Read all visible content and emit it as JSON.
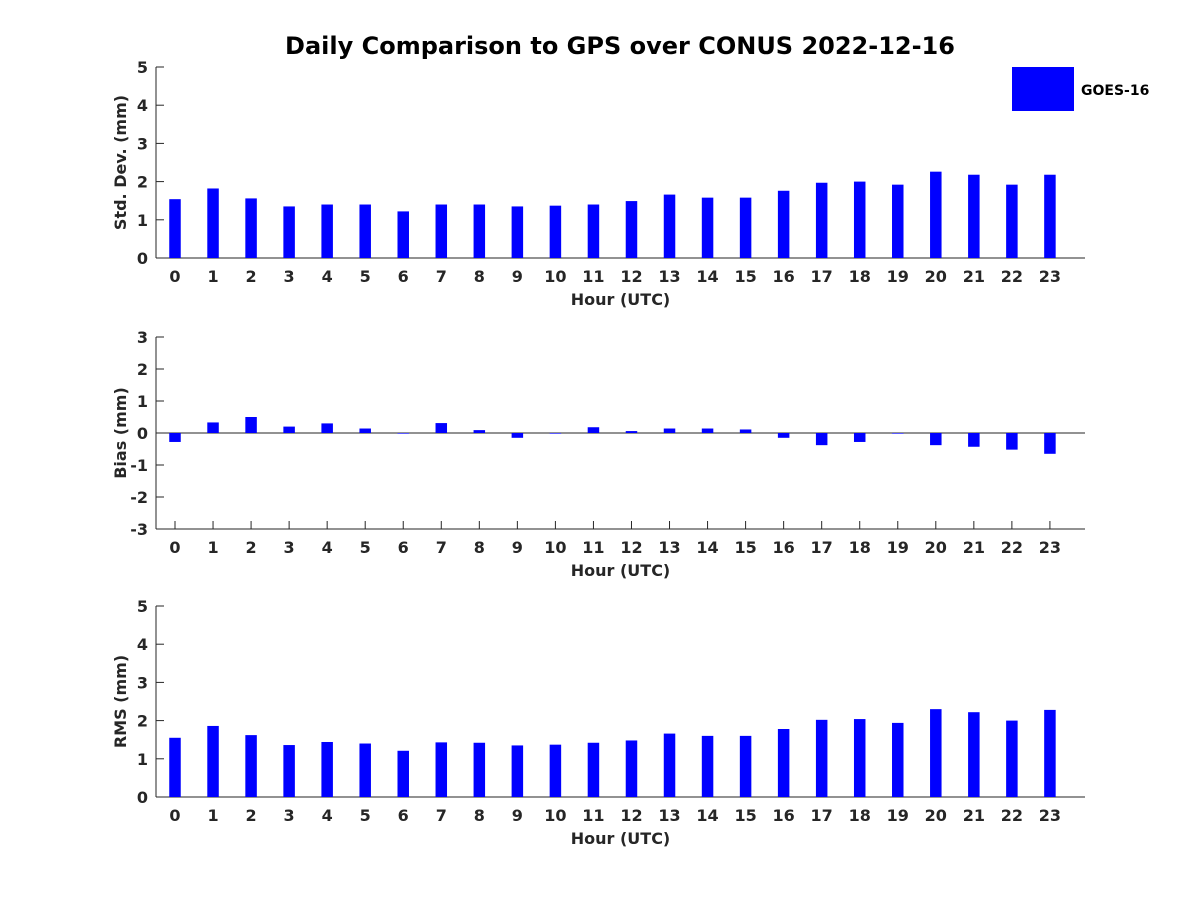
{
  "title": "Daily Comparison to GPS over CONUS 2022-12-16",
  "legend": {
    "label": "GOES-16",
    "color": "#0000ff"
  },
  "chart_data": [
    {
      "type": "bar",
      "xlabel": "Hour (UTC)",
      "ylabel": "Std. Dev. (mm)",
      "categories": [
        "0",
        "1",
        "2",
        "3",
        "4",
        "5",
        "6",
        "7",
        "8",
        "9",
        "10",
        "11",
        "12",
        "13",
        "14",
        "15",
        "16",
        "17",
        "18",
        "19",
        "20",
        "21",
        "22",
        "23"
      ],
      "series": [
        {
          "name": "GOES-16",
          "color": "#0000ff",
          "values": [
            1.54,
            1.82,
            1.56,
            1.35,
            1.4,
            1.4,
            1.22,
            1.4,
            1.4,
            1.35,
            1.37,
            1.4,
            1.49,
            1.66,
            1.58,
            1.58,
            1.76,
            1.97,
            2.0,
            1.92,
            2.26,
            2.18,
            1.92,
            2.18
          ]
        }
      ],
      "ylim": [
        0,
        5
      ],
      "yticks": [
        0,
        1,
        2,
        3,
        4,
        5
      ]
    },
    {
      "type": "bar",
      "xlabel": "Hour (UTC)",
      "ylabel": "Bias (mm)",
      "categories": [
        "0",
        "1",
        "2",
        "3",
        "4",
        "5",
        "6",
        "7",
        "8",
        "9",
        "10",
        "11",
        "12",
        "13",
        "14",
        "15",
        "16",
        "17",
        "18",
        "19",
        "20",
        "21",
        "22",
        "23"
      ],
      "series": [
        {
          "name": "GOES-16",
          "color": "#0000ff",
          "values": [
            -0.28,
            0.33,
            0.5,
            0.2,
            0.3,
            0.14,
            -0.02,
            0.31,
            0.09,
            -0.15,
            -0.02,
            0.18,
            0.06,
            0.14,
            0.14,
            0.11,
            -0.15,
            -0.38,
            -0.28,
            -0.02,
            -0.38,
            -0.43,
            -0.52,
            -0.65
          ]
        }
      ],
      "ylim": [
        -3,
        3
      ],
      "yticks": [
        -3,
        -2,
        -1,
        0,
        1,
        2,
        3
      ]
    },
    {
      "type": "bar",
      "xlabel": "Hour (UTC)",
      "ylabel": "RMS (mm)",
      "categories": [
        "0",
        "1",
        "2",
        "3",
        "4",
        "5",
        "6",
        "7",
        "8",
        "9",
        "10",
        "11",
        "12",
        "13",
        "14",
        "15",
        "16",
        "17",
        "18",
        "19",
        "20",
        "21",
        "22",
        "23"
      ],
      "series": [
        {
          "name": "GOES-16",
          "color": "#0000ff",
          "values": [
            1.55,
            1.86,
            1.62,
            1.36,
            1.44,
            1.4,
            1.21,
            1.43,
            1.42,
            1.35,
            1.37,
            1.42,
            1.48,
            1.66,
            1.6,
            1.6,
            1.78,
            2.02,
            2.04,
            1.94,
            2.3,
            2.22,
            2.0,
            2.28
          ]
        }
      ],
      "ylim": [
        0,
        5
      ],
      "yticks": [
        0,
        1,
        2,
        3,
        4,
        5
      ]
    }
  ]
}
